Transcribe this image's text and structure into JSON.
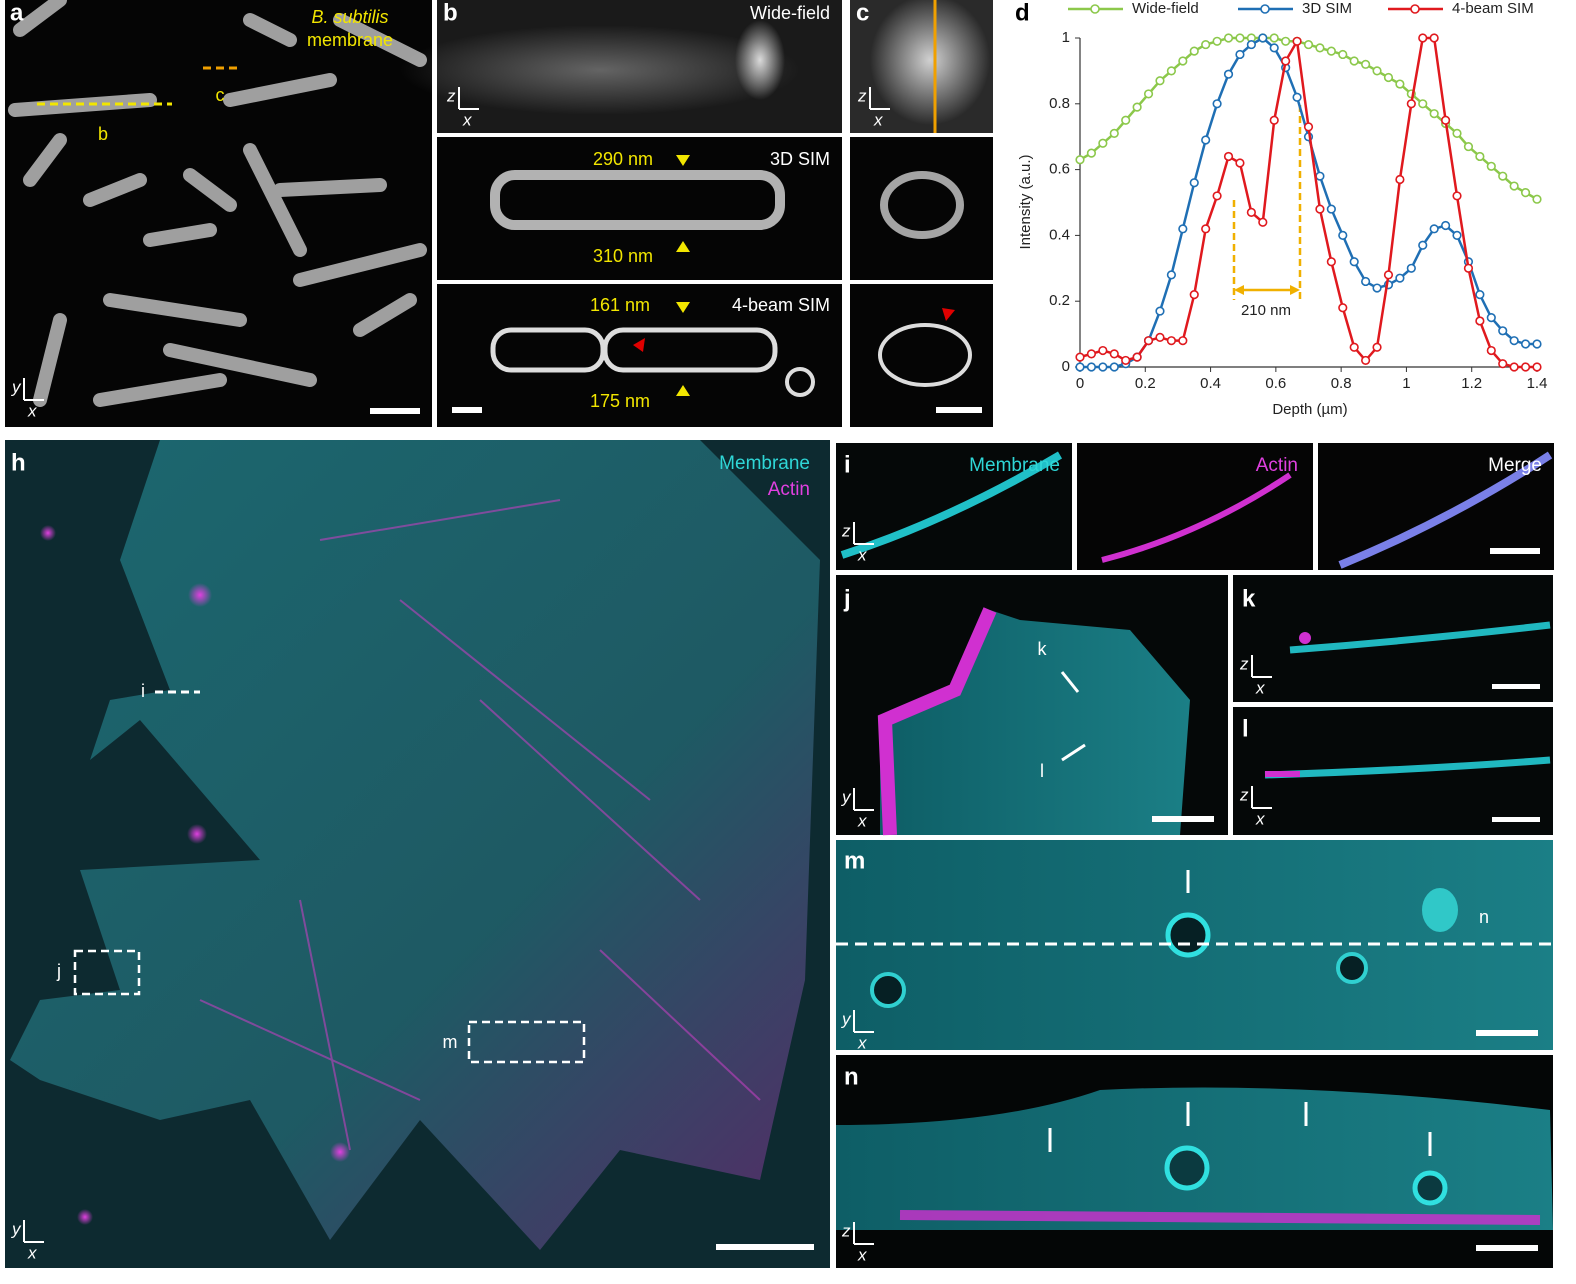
{
  "panels": {
    "a": {
      "label": "a",
      "annotation": [
        "B. subtilis",
        "membrane"
      ],
      "line_labels": [
        "b",
        "c"
      ],
      "axes": [
        "y",
        "x"
      ]
    },
    "b": {
      "label": "b",
      "axes": [
        "z",
        "x"
      ],
      "rows": [
        {
          "title": "Wide-field"
        },
        {
          "title": "3D SIM",
          "measures": [
            "290 nm",
            "310 nm"
          ]
        },
        {
          "title": "4-beam SIM",
          "measures": [
            "161 nm",
            "175 nm"
          ]
        }
      ]
    },
    "c": {
      "label": "c",
      "axes": [
        "z",
        "x"
      ]
    },
    "d": {
      "label": "d"
    },
    "h": {
      "label": "h",
      "channels": [
        "Membrane",
        "Actin"
      ],
      "box_labels": [
        "i",
        "j",
        "m"
      ],
      "axes": [
        "y",
        "x"
      ]
    },
    "i": {
      "label": "i",
      "titles": [
        "Membrane",
        "Actin",
        "Merge"
      ],
      "axes": [
        "z",
        "x"
      ]
    },
    "j": {
      "label": "j",
      "arrow_labels": [
        "k",
        "l"
      ],
      "axes": [
        "y",
        "x"
      ]
    },
    "k": {
      "label": "k",
      "axes": [
        "z",
        "x"
      ]
    },
    "l": {
      "label": "l",
      "axes": [
        "z",
        "x"
      ]
    },
    "m": {
      "label": "m",
      "line_label": "n",
      "axes": [
        "y",
        "x"
      ]
    },
    "n": {
      "label": "n",
      "axes": [
        "z",
        "x"
      ]
    }
  },
  "chart_data": {
    "type": "line",
    "xlabel": "Depth (µm)",
    "ylabel": "Intensity (a.u.)",
    "annotation": "210 nm",
    "xlim": [
      0,
      1.4
    ],
    "xticks": [
      0,
      0.2,
      0.4,
      0.6,
      0.8,
      1,
      1.2,
      1.4
    ],
    "ylim": [
      0,
      1
    ],
    "yticks": [
      0,
      0.2,
      0.4,
      0.6,
      0.8,
      1
    ],
    "x": [
      0,
      0.035,
      0.07,
      0.105,
      0.14,
      0.175,
      0.21,
      0.245,
      0.28,
      0.315,
      0.35,
      0.385,
      0.42,
      0.455,
      0.49,
      0.525,
      0.56,
      0.595,
      0.63,
      0.665,
      0.7,
      0.735,
      0.77,
      0.805,
      0.84,
      0.875,
      0.91,
      0.945,
      0.98,
      1.015,
      1.05,
      1.085,
      1.12,
      1.155,
      1.19,
      1.225,
      1.26,
      1.295,
      1.33,
      1.365,
      1.4
    ],
    "series": [
      {
        "name": "Wide-field",
        "color": "#8cc84b",
        "values": [
          0.63,
          0.65,
          0.68,
          0.71,
          0.75,
          0.79,
          0.83,
          0.87,
          0.9,
          0.93,
          0.96,
          0.98,
          0.99,
          1,
          1,
          1,
          1,
          1,
          0.99,
          0.99,
          0.98,
          0.97,
          0.96,
          0.95,
          0.93,
          0.92,
          0.9,
          0.88,
          0.86,
          0.83,
          0.8,
          0.77,
          0.74,
          0.71,
          0.67,
          0.64,
          0.61,
          0.58,
          0.55,
          0.53,
          0.51
        ]
      },
      {
        "name": "3D SIM",
        "color": "#1f6fb4",
        "values": [
          0,
          0,
          0,
          0,
          0.01,
          0.03,
          0.08,
          0.17,
          0.28,
          0.42,
          0.56,
          0.69,
          0.8,
          0.89,
          0.95,
          0.98,
          1,
          0.97,
          0.91,
          0.82,
          0.7,
          0.58,
          0.48,
          0.4,
          0.32,
          0.26,
          0.24,
          0.25,
          0.27,
          0.3,
          0.37,
          0.42,
          0.43,
          0.4,
          0.32,
          0.22,
          0.15,
          0.11,
          0.08,
          0.07,
          0.07
        ]
      },
      {
        "name": "4-beam SIM",
        "color": "#e0191e",
        "values": [
          0.03,
          0.04,
          0.05,
          0.04,
          0.02,
          0.03,
          0.08,
          0.09,
          0.08,
          0.08,
          0.22,
          0.42,
          0.52,
          0.64,
          0.62,
          0.47,
          0.44,
          0.75,
          0.93,
          0.99,
          0.73,
          0.48,
          0.32,
          0.18,
          0.06,
          0.02,
          0.06,
          0.28,
          0.57,
          0.8,
          1,
          1,
          0.75,
          0.52,
          0.3,
          0.14,
          0.05,
          0.01,
          0,
          0,
          0
        ]
      }
    ]
  }
}
